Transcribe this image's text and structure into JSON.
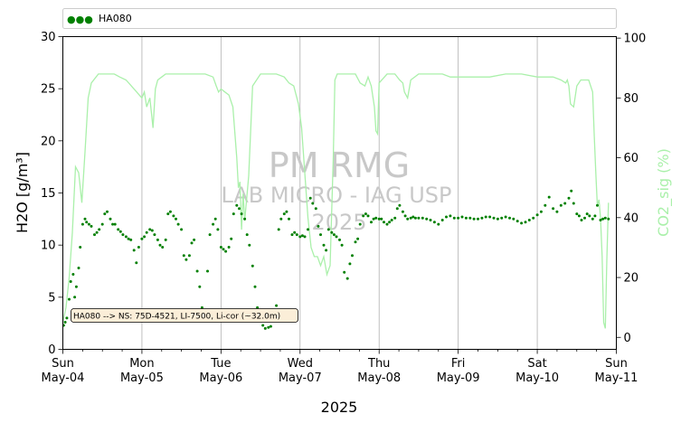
{
  "chart_data": {
    "type": "line",
    "title": "",
    "xlabel": "2025",
    "ylabel": "H2O [g/m³]",
    "ylabel_right": "CO2_sig (%)",
    "ylim": [
      0,
      30
    ],
    "ylim_right": [
      -4,
      100.5
    ],
    "xlim": [
      0,
      7
    ],
    "grid": "vertical",
    "legend": {
      "placement": "top",
      "marker": "●●●",
      "entries": [
        "HA080"
      ]
    },
    "x_ticks": [
      {
        "x": 0,
        "day": "Sun",
        "date": "May-04"
      },
      {
        "x": 1,
        "day": "Mon",
        "date": "May-05"
      },
      {
        "x": 2,
        "day": "Tue",
        "date": "May-06"
      },
      {
        "x": 3,
        "day": "Wed",
        "date": "May-07"
      },
      {
        "x": 4,
        "day": "Thu",
        "date": "May-08"
      },
      {
        "x": 5,
        "day": "Fri",
        "date": "May-09"
      },
      {
        "x": 6,
        "day": "Sat",
        "date": "May-10"
      },
      {
        "x": 7,
        "day": "Sun",
        "date": "May-11"
      }
    ],
    "y_ticks_left": [
      "0",
      "5",
      "10",
      "15",
      "20",
      "25",
      "30"
    ],
    "y_ticks_right": [
      "0",
      "20",
      "40",
      "60",
      "80",
      "100"
    ],
    "watermark": [
      "PM RMG",
      "LAB MICRO - IAG USP",
      "2025"
    ],
    "annotation": "HA080 --> NS: 75D-4521, LI-7500, Li-cor (~32.0m)",
    "colors": {
      "h2o": "#008000",
      "co2": "#aaf0aa",
      "grid": "#b0b0b0",
      "annotation_bg": "#fbeed8"
    },
    "series": [
      {
        "name": "HA080",
        "axis": "left",
        "style": "points",
        "x": [
          0.01,
          0.03,
          0.05,
          0.08,
          0.1,
          0.13,
          0.15,
          0.17,
          0.2,
          0.22,
          0.25,
          0.28,
          0.3,
          0.33,
          0.36,
          0.4,
          0.43,
          0.46,
          0.5,
          0.53,
          0.56,
          0.6,
          0.63,
          0.66,
          0.7,
          0.73,
          0.76,
          0.8,
          0.83,
          0.86,
          0.9,
          0.93,
          0.96,
          1.0,
          1.03,
          1.06,
          1.1,
          1.13,
          1.16,
          1.2,
          1.23,
          1.26,
          1.3,
          1.33,
          1.36,
          1.4,
          1.43,
          1.46,
          1.5,
          1.53,
          1.56,
          1.6,
          1.63,
          1.66,
          1.7,
          1.73,
          1.76,
          1.8,
          1.83,
          1.86,
          1.9,
          1.93,
          1.96,
          2.0,
          2.03,
          2.06,
          2.1,
          2.13,
          2.16,
          2.2,
          2.23,
          2.26,
          2.3,
          2.33,
          2.36,
          2.4,
          2.43,
          2.46,
          2.5,
          2.53,
          2.56,
          2.6,
          2.63,
          2.66,
          2.7,
          2.73,
          2.76,
          2.8,
          2.83,
          2.86,
          2.9,
          2.93,
          2.96,
          3.0,
          3.03,
          3.06,
          3.1,
          3.13,
          3.16,
          3.2,
          3.23,
          3.26,
          3.3,
          3.33,
          3.36,
          3.4,
          3.43,
          3.46,
          3.5,
          3.53,
          3.56,
          3.6,
          3.63,
          3.66,
          3.7,
          3.73,
          3.76,
          3.8,
          3.83,
          3.86,
          3.9,
          3.93,
          3.96,
          4.0,
          4.03,
          4.06,
          4.1,
          4.13,
          4.16,
          4.2,
          4.23,
          4.26,
          4.3,
          4.33,
          4.36,
          4.4,
          4.43,
          4.46,
          4.5,
          4.55,
          4.6,
          4.65,
          4.7,
          4.75,
          4.8,
          4.85,
          4.9,
          4.95,
          5.0,
          5.05,
          5.1,
          5.15,
          5.2,
          5.25,
          5.3,
          5.35,
          5.4,
          5.45,
          5.5,
          5.55,
          5.6,
          5.65,
          5.7,
          5.75,
          5.8,
          5.85,
          5.9,
          5.95,
          6.0,
          6.05,
          6.1,
          6.15,
          6.2,
          6.25,
          6.3,
          6.35,
          6.4,
          6.43,
          6.46,
          6.5,
          6.53,
          6.56,
          6.6,
          6.63,
          6.66,
          6.7,
          6.73,
          6.76,
          6.8,
          6.83,
          6.86,
          6.9
        ],
        "y": [
          2.3,
          2.6,
          3.0,
          4.8,
          6.5,
          7.2,
          5.0,
          6.0,
          7.8,
          9.8,
          12.0,
          12.5,
          12.2,
          12.0,
          11.8,
          11.0,
          11.2,
          11.5,
          12.0,
          13.0,
          13.2,
          12.5,
          12.0,
          12.0,
          11.5,
          11.3,
          11.0,
          10.8,
          10.6,
          10.5,
          9.5,
          8.3,
          9.8,
          10.6,
          10.8,
          11.2,
          11.5,
          11.4,
          11.0,
          10.5,
          10.0,
          9.8,
          10.5,
          13.0,
          13.2,
          12.8,
          12.5,
          12.0,
          11.5,
          9.0,
          8.6,
          9.0,
          10.2,
          10.5,
          7.5,
          6.0,
          4.0,
          3.0,
          7.5,
          11.0,
          12.0,
          12.5,
          11.5,
          9.8,
          9.6,
          9.4,
          9.8,
          10.6,
          13.0,
          13.8,
          13.5,
          13.0,
          12.5,
          11.0,
          10.0,
          8.0,
          6.0,
          4.0,
          3.5,
          2.3,
          2.0,
          2.1,
          2.2,
          3.2,
          4.2,
          11.5,
          12.5,
          13.0,
          13.2,
          12.5,
          11.0,
          11.2,
          11.0,
          10.8,
          10.9,
          10.8,
          11.5,
          14.5,
          14.0,
          13.5,
          11.8,
          11.0,
          10.0,
          9.5,
          11.5,
          11.2,
          11.0,
          10.8,
          10.5,
          10.0,
          7.4,
          6.8,
          8.2,
          9.0,
          10.3,
          10.6,
          12.0,
          12.8,
          13.0,
          12.8,
          12.2,
          12.5,
          12.6,
          12.5,
          12.5,
          12.2,
          12.0,
          12.2,
          12.4,
          12.6,
          13.5,
          13.8,
          13.2,
          12.8,
          12.5,
          12.6,
          12.7,
          12.6,
          12.6,
          12.6,
          12.5,
          12.4,
          12.2,
          12.0,
          12.4,
          12.7,
          12.8,
          12.6,
          12.6,
          12.7,
          12.6,
          12.6,
          12.5,
          12.5,
          12.6,
          12.7,
          12.7,
          12.6,
          12.5,
          12.6,
          12.7,
          12.6,
          12.5,
          12.3,
          12.1,
          12.2,
          12.4,
          12.6,
          12.9,
          13.2,
          13.8,
          14.6,
          13.5,
          13.2,
          13.8,
          14.0,
          14.5,
          15.2,
          14.0,
          13.0,
          12.8,
          12.4,
          12.6,
          13.0,
          12.8,
          12.5,
          12.8,
          13.8,
          12.4,
          12.5,
          12.6,
          12.5
        ]
      },
      {
        "name": "CO2_sig",
        "axis": "right",
        "style": "line",
        "x": [
          0,
          0.04,
          0.08,
          0.12,
          0.16,
          0.2,
          0.24,
          0.28,
          0.32,
          0.36,
          0.45,
          0.55,
          0.65,
          0.72,
          0.8,
          0.9,
          1.0,
          1.03,
          1.06,
          1.1,
          1.14,
          1.17,
          1.2,
          1.25,
          1.3,
          1.4,
          1.5,
          1.6,
          1.7,
          1.8,
          1.9,
          1.94,
          1.97,
          2.0,
          2.05,
          2.1,
          2.15,
          2.2,
          2.22,
          2.24,
          2.26,
          2.28,
          2.3,
          2.35,
          2.4,
          2.5,
          2.6,
          2.7,
          2.8,
          2.86,
          2.92,
          2.98,
          3.02,
          3.06,
          3.1,
          3.14,
          3.18,
          3.22,
          3.26,
          3.3,
          3.34,
          3.38,
          3.42,
          3.44,
          3.47,
          3.52,
          3.6,
          3.7,
          3.76,
          3.82,
          3.86,
          3.9,
          3.94,
          3.96,
          3.98,
          4.0,
          4.1,
          4.2,
          4.26,
          4.3,
          4.32,
          4.36,
          4.4,
          4.5,
          4.6,
          4.7,
          4.8,
          4.9,
          5.0,
          5.2,
          5.4,
          5.6,
          5.8,
          6.0,
          6.2,
          6.3,
          6.36,
          6.38,
          6.4,
          6.42,
          6.46,
          6.5,
          6.55,
          6.6,
          6.65,
          6.7,
          6.72,
          6.74,
          6.76,
          6.78,
          6.8,
          6.82,
          6.84,
          6.86,
          6.88,
          6.9
        ],
        "y": [
          5,
          10,
          20,
          35,
          57,
          55,
          45,
          62,
          80,
          85,
          88,
          88,
          88,
          87,
          86,
          83,
          80,
          82,
          77,
          80,
          70,
          83,
          86,
          87,
          88,
          88,
          88,
          88,
          88,
          88,
          87,
          84,
          82,
          83,
          82,
          81,
          77,
          60,
          50,
          52,
          36,
          48,
          39,
          54,
          84,
          88,
          88,
          88,
          87,
          85,
          84,
          78,
          70,
          55,
          40,
          30,
          27,
          27,
          24,
          27,
          21,
          24,
          60,
          86,
          88,
          88,
          88,
          88,
          85,
          84,
          87,
          84,
          77,
          69,
          68,
          85,
          88,
          88,
          86,
          85,
          82,
          80,
          86,
          88,
          88,
          88,
          88,
          87,
          87,
          87,
          87,
          88,
          88,
          87,
          87,
          86,
          85,
          86,
          84,
          78,
          77,
          84,
          86,
          86,
          86,
          82,
          68,
          55,
          44,
          46,
          40,
          27,
          5,
          3,
          26,
          45
        ]
      }
    ]
  }
}
